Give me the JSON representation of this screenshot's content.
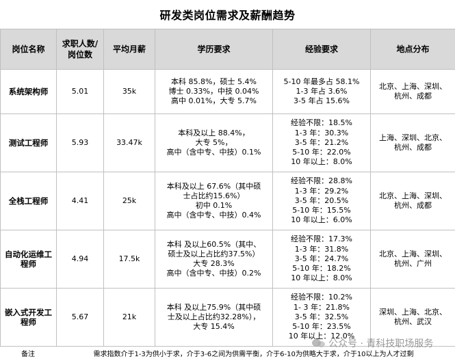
{
  "title": "研发类岗位需求及薪酬趋势",
  "headers": {
    "name": "岗位名称",
    "ratio_line1": "求职人数/",
    "ratio_line2": "岗位数",
    "salary": "平均月薪",
    "education": "学历要求",
    "experience": "经验要求",
    "location": "地点分布"
  },
  "rows": [
    {
      "name": [
        "系统架构师"
      ],
      "ratio": "5.01",
      "salary": "35k",
      "education": [
        "本科 85.8%，硕士 5.4%",
        "博士 0.33%，中技 0.04%",
        "高中 0.01%，大专 5.7%"
      ],
      "experience": [
        "5-10 年最多占 58.1%",
        "1-3 年占 3.6%",
        "3-5 年占 15.6%"
      ],
      "location": [
        "北京、上海、深圳、",
        "杭州、成都"
      ]
    },
    {
      "name": [
        "测试工程师"
      ],
      "ratio": "5.93",
      "salary": "33.47k",
      "education": [
        "本科及以上 88.4%，",
        "大专 5%，",
        "高中（含中专、中技）0.1%"
      ],
      "experience": [
        "经验不限：18.5%",
        "1-3 年：30.3%",
        "3-5 年：21.2%",
        "5-10 年：22.0%",
        "10 年以上：8.0%"
      ],
      "location": [
        "上海、深圳、北京、",
        "杭州、成都"
      ]
    },
    {
      "name": [
        "全栈工程师"
      ],
      "ratio": "4.41",
      "salary": "25k",
      "education": [
        "本科及以上 67.6%（其中硕",
        "士占比约15.6%）",
        "初中 0.1%",
        "高中（含中专、中技）0.4%"
      ],
      "experience": [
        "经验不限：28.8%",
        "1-3 年：29.2%",
        "3-5 年：20.5%",
        "5-10 年：15.5%",
        "10 年以上：6.0%"
      ],
      "location": [
        "北京、上海、深圳、",
        "杭州、成都"
      ]
    },
    {
      "name": [
        "自动化运维工",
        "程师"
      ],
      "ratio": "4.94",
      "salary": "17.5k",
      "education": [
        "本科 及以上60.5%（其中、",
        "硕士及以上占比约37.5%）",
        "大专 28.3%",
        "高中（含中专、中技）0.2%"
      ],
      "experience": [
        "经验不限：17.3%",
        "1-3 年：31.8%",
        "3-5 年：24.7%",
        "5-10 年：18.2%",
        "10 年以上：8.0%"
      ],
      "location": [
        "北京、上海、深圳、",
        "杭州、广州"
      ]
    },
    {
      "name": [
        "嵌入式开发工",
        "程师"
      ],
      "ratio": "5.67",
      "salary": "21k",
      "education": [
        "本科 及以上75.9%（其中硕",
        "士及以上占比约32.28%），",
        "大专 15.4%"
      ],
      "experience": [
        "经验不限：10.2%",
        "1- 3 年：21.8%",
        "3-5 年：32.5%",
        "5-10 年：23.5%",
        "10 年以上：12.0%"
      ],
      "location": [
        "深圳、上海、北京、",
        "杭州、武汉"
      ]
    }
  ],
  "note": {
    "label": "备注",
    "text": "需求指数介于1-3为供小于求，介于3-6之间为供需平衡，介于6-10为供略大于求，介于10以上为人才过剩"
  },
  "watermark": "公众号 · 青科技职场服务",
  "watermark_icon": "wechat-icon"
}
